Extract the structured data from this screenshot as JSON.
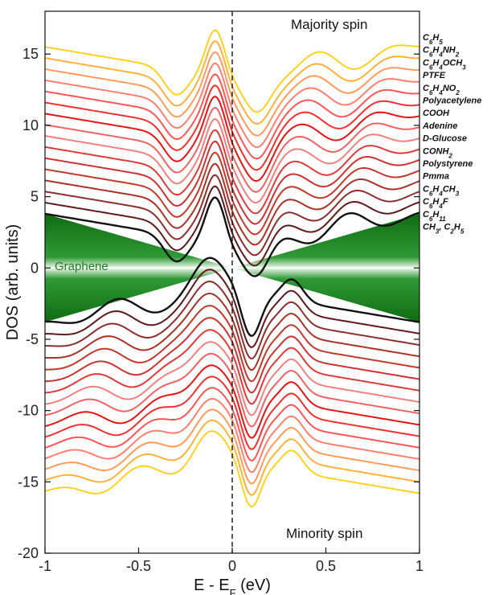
{
  "chart_data": {
    "type": "line",
    "xlabel": "E - E",
    "xlabel_sub": "F",
    "xlabel_unit": " (eV)",
    "ylabel": "DOS (arb. units)",
    "xlim": [
      -1,
      1
    ],
    "ylim": [
      -20,
      18
    ],
    "x_ticks": [
      {
        "v": -1,
        "label": "-1"
      },
      {
        "v": -0.5,
        "label": "-0.5"
      },
      {
        "v": 0,
        "label": "0"
      },
      {
        "v": 0.5,
        "label": "0.5"
      },
      {
        "v": 1,
        "label": "1"
      }
    ],
    "y_ticks": [
      {
        "v": 15,
        "label": "15"
      },
      {
        "v": 10,
        "label": "10"
      },
      {
        "v": 5,
        "label": "5"
      },
      {
        "v": 0,
        "label": "0"
      },
      {
        "v": -5,
        "label": "-5"
      },
      {
        "v": -10,
        "label": "-10"
      },
      {
        "v": -15,
        "label": "-15"
      },
      {
        "v": -20,
        "label": "-20"
      }
    ],
    "fermi_line_x": 0,
    "grid": false,
    "legend_position": "right",
    "annotations": {
      "majority": "Majority spin",
      "minority": "Minority spin",
      "graphene": "Graphene"
    },
    "graphene_color": "#1f8a2a",
    "series": [
      {
        "name": "C6H5",
        "parts": [
          [
            "C",
            ""
          ],
          [
            "6",
            "sub"
          ],
          [
            "H",
            ""
          ],
          [
            "5",
            "sub"
          ]
        ],
        "color": "#ffd21f"
      },
      {
        "name": "C6H4NH2",
        "parts": [
          [
            "C",
            ""
          ],
          [
            "6",
            "sub"
          ],
          [
            "H",
            ""
          ],
          [
            "4",
            "sub"
          ],
          [
            "NH",
            ""
          ],
          [
            "2",
            "sub"
          ]
        ],
        "color": "#ffb13a"
      },
      {
        "name": "C6H4OCH3",
        "parts": [
          [
            "C",
            ""
          ],
          [
            "6",
            "sub"
          ],
          [
            "H",
            ""
          ],
          [
            "4",
            "sub"
          ],
          [
            "OCH",
            ""
          ],
          [
            "3",
            "sub"
          ]
        ],
        "color": "#ff9b5a"
      },
      {
        "name": "PTFE",
        "parts": [
          [
            "PTFE",
            ""
          ]
        ],
        "color": "#ff7f6e"
      },
      {
        "name": "C6H4NO2",
        "parts": [
          [
            "C",
            ""
          ],
          [
            "6",
            "sub"
          ],
          [
            "H",
            ""
          ],
          [
            "4",
            "sub"
          ],
          [
            "NO",
            ""
          ],
          [
            "2",
            "sub"
          ]
        ],
        "color": "#ff5555"
      },
      {
        "name": "Polyacetylene",
        "parts": [
          [
            "Polyacetylene",
            ""
          ]
        ],
        "color": "#f23030"
      },
      {
        "name": "COOH",
        "parts": [
          [
            "COOH",
            ""
          ]
        ],
        "color": "#e51414"
      },
      {
        "name": "Adenine",
        "parts": [
          [
            "Adenine",
            ""
          ]
        ],
        "color": "#f06262"
      },
      {
        "name": "D-Glucose",
        "parts": [
          [
            "D-Glucose",
            ""
          ]
        ],
        "color": "#f08080"
      },
      {
        "name": "CONH2",
        "parts": [
          [
            "CONH",
            ""
          ],
          [
            "2",
            "sub"
          ]
        ],
        "color": "#de3a3a"
      },
      {
        "name": "Polystyrene",
        "parts": [
          [
            "Polystyrene",
            ""
          ]
        ],
        "color": "#cc3232"
      },
      {
        "name": "Pmma",
        "parts": [
          [
            "Pmma",
            ""
          ]
        ],
        "color": "#c0392b"
      },
      {
        "name": "C6H4CH3",
        "parts": [
          [
            "C",
            ""
          ],
          [
            "6",
            "sub"
          ],
          [
            "H",
            ""
          ],
          [
            "4",
            "sub"
          ],
          [
            "CH",
            ""
          ],
          [
            "3",
            "sub"
          ]
        ],
        "color": "#a93226"
      },
      {
        "name": "C6H4F",
        "parts": [
          [
            "C",
            ""
          ],
          [
            "6",
            "sub"
          ],
          [
            "H",
            ""
          ],
          [
            "4",
            "sub"
          ],
          [
            "F",
            ""
          ]
        ],
        "color": "#8b2e2e"
      },
      {
        "name": "C6H11",
        "parts": [
          [
            "C",
            ""
          ],
          [
            "6",
            "sub"
          ],
          [
            "H",
            ""
          ],
          [
            "11",
            "sub"
          ]
        ],
        "color": "#5e1a1a"
      },
      {
        "name": "CH3, C2H5",
        "parts": [
          [
            "CH",
            ""
          ],
          [
            "3",
            "sub"
          ],
          [
            ", C",
            ""
          ],
          [
            "2",
            "sub"
          ],
          [
            "H",
            ""
          ],
          [
            "5",
            "sub"
          ]
        ],
        "color": "#111111"
      }
    ]
  }
}
